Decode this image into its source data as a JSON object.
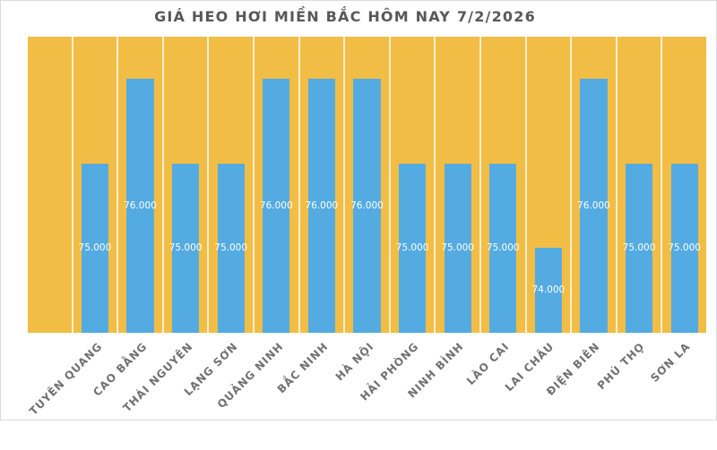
{
  "title": "GIÁ HEO HƠI MIỀN BẮC HÔM NAY 7/2/2026",
  "colors": {
    "page_background": "#FFFFFF",
    "frame_border": "#DBDBDB",
    "plot_background": "#F2BD45",
    "bar": "#54ABE2",
    "column_divider": "rgba(255,255,255,0.75)",
    "title_text": "#58585A",
    "axis_label_text": "#707070",
    "value_label_text": "#FFFFFF"
  },
  "chart_data": {
    "type": "bar",
    "title": "GIÁ HEO HƠI MIỀN BẮC HÔM NAY 7/2/2026",
    "categories": [
      "TUYÊN QUANG",
      "CAO BẰNG",
      "THÁI NGUYÊN",
      "LẠNG SƠN",
      "QUẢNG NINH",
      "BẮC NINH",
      "HÀ NỘI",
      "HẢI PHÒNG",
      "NINH BÌNH",
      "LÀO CAI",
      "LAI CHÂU",
      "ĐIỆN BIÊN",
      "PHÚ THỌ",
      "SƠN LA"
    ],
    "values": [
      75000,
      76000,
      75000,
      75000,
      76000,
      76000,
      76000,
      75000,
      75000,
      75000,
      74000,
      76000,
      75000,
      75000
    ],
    "value_labels": [
      "75.000",
      "76.000",
      "75.000",
      "75.000",
      "76.000",
      "76.000",
      "76.000",
      "75.000",
      "75.000",
      "75.000",
      "74.000",
      "76.000",
      "75.000",
      "75.000"
    ],
    "xlabel": "",
    "ylabel": "",
    "ylim": [
      73000,
      76500
    ],
    "legend": "none",
    "grid": "vertical column dividers only",
    "value_label_position": "center-inside-bar",
    "x_tick_rotation_deg": 45,
    "leading_empty_columns": 1
  }
}
